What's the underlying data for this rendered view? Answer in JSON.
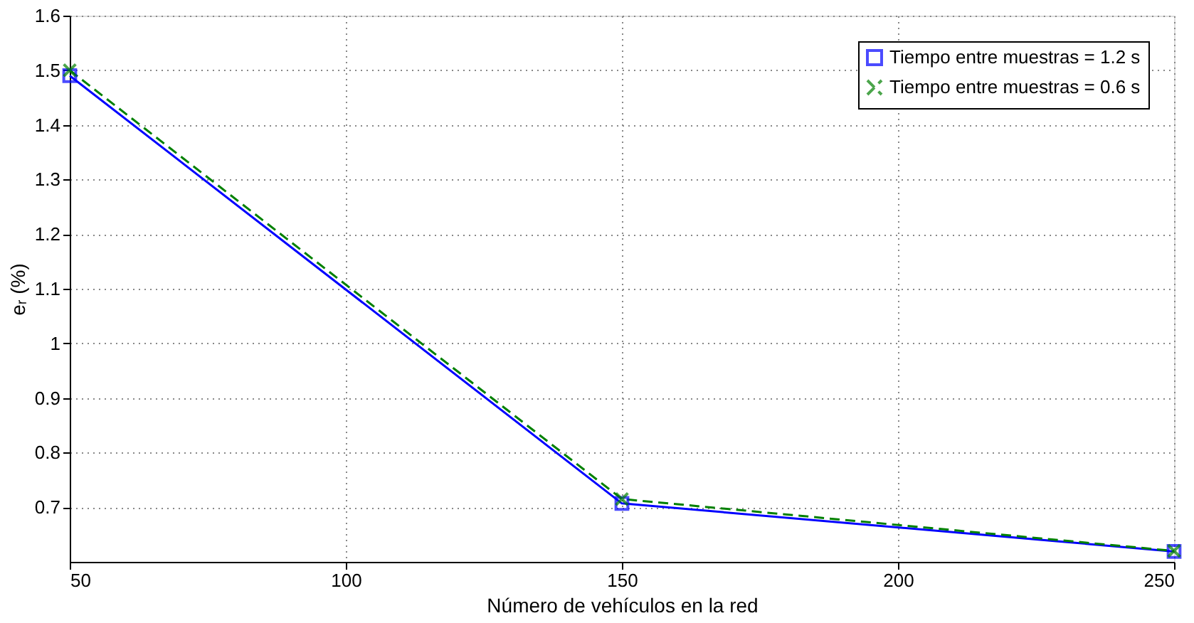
{
  "chart_data": {
    "type": "line",
    "xlabel": "Número de vehículos en la red",
    "ylabel": "eᵣ (%)",
    "x": [
      50,
      150,
      250
    ],
    "series": [
      {
        "name": "Tiempo entre muestras = 1.2 s",
        "color": "#0000ff",
        "values": [
          1.49,
          0.707,
          0.619
        ],
        "marker": "square",
        "line_style": "solid"
      },
      {
        "name": "Tiempo entre muestras = 0.6 s",
        "color": "#008000",
        "values": [
          1.5,
          0.715,
          0.62
        ],
        "marker": "cross",
        "line_style": "dashed"
      }
    ],
    "xlim": [
      50,
      250
    ],
    "xticks": [
      50,
      100,
      150,
      200,
      250
    ],
    "ylim": [
      0.6,
      1.6
    ],
    "yticks": [
      0.7,
      0.8,
      0.9,
      1,
      1.1,
      1.2,
      1.3,
      1.4,
      1.5,
      1.6
    ],
    "grid": true,
    "legend": "top right"
  }
}
